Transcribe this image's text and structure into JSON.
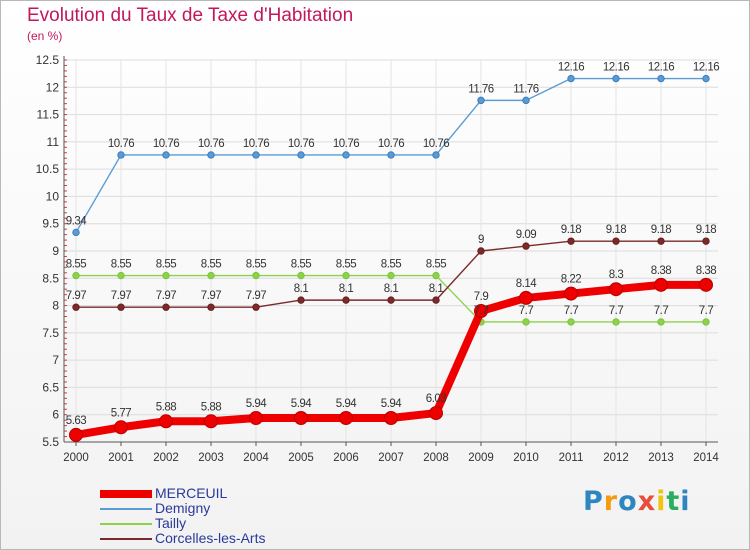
{
  "header": {
    "title": "Evolution du Taux de Taxe d'Habitation",
    "unit": "(en %)"
  },
  "logo": {
    "text": "Proxiti",
    "colors": [
      "#2e86c1",
      "#f39c12",
      "#2e86c1",
      "#e74c3c",
      "#f1c40f",
      "#27ae60",
      "#2e86c1"
    ]
  },
  "chart_data": {
    "type": "line",
    "title": "Evolution du Taux de Taxe d'Habitation",
    "ylabel": "(en %)",
    "xlabel": "",
    "categories": [
      "2000",
      "2001",
      "2002",
      "2003",
      "2004",
      "2005",
      "2006",
      "2007",
      "2008",
      "2009",
      "2010",
      "2011",
      "2012",
      "2013",
      "2014"
    ],
    "ylim": [
      5.5,
      12.5
    ],
    "yticks": [
      "5.5",
      "6",
      "6.5",
      "7",
      "7.5",
      "8",
      "8.5",
      "9",
      "9.5",
      "10",
      "10.5",
      "11",
      "11.5",
      "12",
      "12.5"
    ],
    "grid": true,
    "legend_position": "bottom",
    "series": [
      {
        "name": "MERCEUIL",
        "color": "#ee0000",
        "emphasis": true,
        "values": [
          5.63,
          5.77,
          5.88,
          5.88,
          5.94,
          5.94,
          5.94,
          5.94,
          6.03,
          7.9,
          8.14,
          8.22,
          8.3,
          8.38,
          8.38
        ],
        "labels": [
          "5.63",
          "5.77",
          "5.88",
          "5.88",
          "5.94",
          "5.94",
          "5.94",
          "5.94",
          "6.03",
          "7.9",
          "8.14",
          "8.22",
          "8.3",
          "8.38",
          "8.38"
        ]
      },
      {
        "name": "Demigny",
        "color": "#5b9bd5",
        "marker": "#3a7dbd",
        "values": [
          9.34,
          10.76,
          10.76,
          10.76,
          10.76,
          10.76,
          10.76,
          10.76,
          10.76,
          11.76,
          11.76,
          12.16,
          12.16,
          12.16,
          12.16
        ],
        "labels": [
          "9.34",
          "10.76",
          "10.76",
          "10.76",
          "10.76",
          "10.76",
          "10.76",
          "10.76",
          "10.76",
          "11.76",
          "11.76",
          "12.16",
          "12.16",
          "12.16",
          "12.16"
        ]
      },
      {
        "name": "Tailly",
        "color": "#8ed14a",
        "marker": "#7cc43c",
        "values": [
          8.55,
          8.55,
          8.55,
          8.55,
          8.55,
          8.55,
          8.55,
          8.55,
          8.55,
          7.7,
          7.7,
          7.7,
          7.7,
          7.7,
          7.7
        ],
        "labels": [
          "8.55",
          "8.55",
          "8.55",
          "8.55",
          "8.55",
          "8.55",
          "8.55",
          "8.55",
          "8.55",
          "7.7",
          "7.7",
          "7.7",
          "7.7",
          "7.7",
          "7.7"
        ]
      },
      {
        "name": "Corcelles-les-Arts",
        "color": "#7a2a2a",
        "marker": "#6b1f1f",
        "values": [
          7.97,
          7.97,
          7.97,
          7.97,
          7.97,
          8.1,
          8.1,
          8.1,
          8.1,
          9,
          9.09,
          9.18,
          9.18,
          9.18,
          9.18
        ],
        "labels": [
          "7.97",
          "7.97",
          "7.97",
          "7.97",
          "7.97",
          "8.1",
          "8.1",
          "8.1",
          "8.1",
          "9",
          "9.09",
          "9.18",
          "9.18",
          "9.18",
          "9.18"
        ]
      }
    ]
  }
}
